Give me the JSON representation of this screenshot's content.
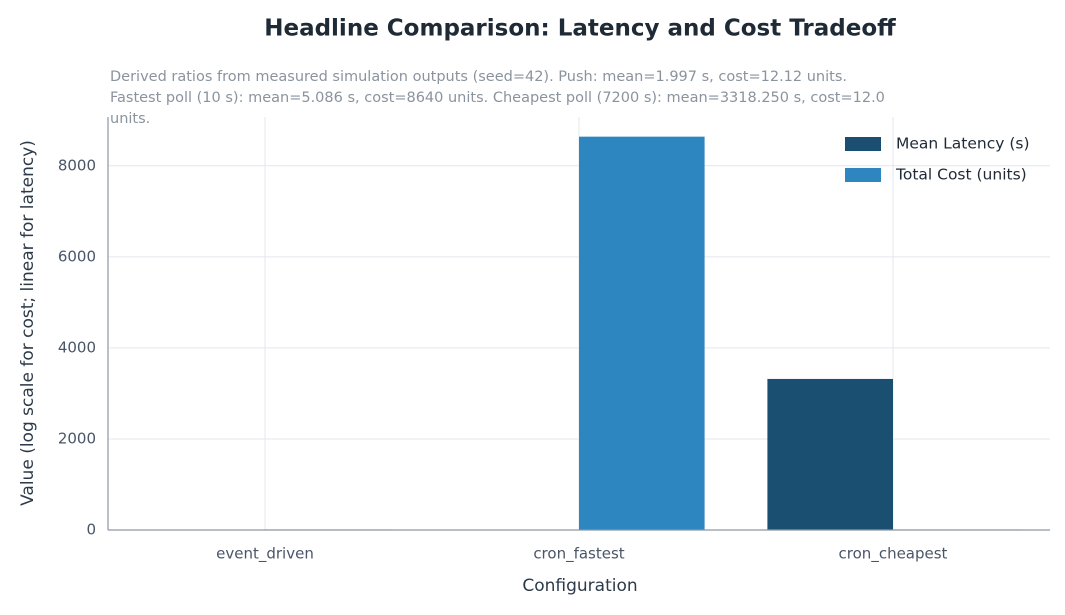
{
  "chart_data": {
    "type": "bar",
    "title": "Headline Comparison: Latency and Cost Tradeoff",
    "subtitle": "Derived ratios from measured simulation outputs (seed=42). Push: mean=1.997 s, cost=12.12 units. Fastest poll (10 s): mean=5.086 s, cost=8640 units. Cheapest poll (7200 s): mean=3318.250 s, cost=12.0 units.",
    "x_label": "Configuration",
    "y_label": "Value (log scale for cost; linear for latency)",
    "categories": [
      "event_driven",
      "cron_fastest",
      "cron_cheapest"
    ],
    "series": [
      {
        "name": "Mean Latency (s)",
        "color": "#1b4f72",
        "values": [
          1.997,
          5.086,
          3318.25
        ]
      },
      {
        "name": "Total Cost (units)",
        "color": "#2e86c1",
        "values": [
          12.12,
          8640,
          12.0
        ]
      }
    ],
    "ylim": [
      0,
      9072
    ],
    "yticks": [
      0,
      2000,
      4000,
      6000,
      8000
    ],
    "grid": true,
    "legend": "upper right"
  }
}
